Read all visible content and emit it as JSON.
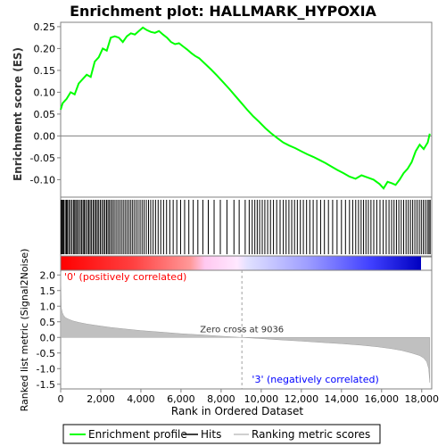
{
  "chart_data": [
    {
      "type": "line",
      "title": "Enrichment plot: HALLMARK_HYPOXIA",
      "ylabel": "Enrichment score (ES)",
      "xlim": [
        0,
        18500
      ],
      "ylim": [
        -0.14,
        0.26
      ],
      "y_ticks": [
        "0.25",
        "0.20",
        "0.15",
        "0.10",
        "0.05",
        "0.00",
        "-0.05",
        "-0.10"
      ],
      "y_tick_values": [
        0.25,
        0.2,
        0.15,
        0.1,
        0.05,
        0.0,
        -0.05,
        -0.1
      ],
      "grid": false,
      "series": [
        {
          "name": "Enrichment profile",
          "color": "#00ff00",
          "x": [
            0,
            100,
            300,
            500,
            700,
            900,
            1100,
            1300,
            1500,
            1700,
            1900,
            2100,
            2300,
            2500,
            2700,
            2900,
            3100,
            3300,
            3500,
            3700,
            3900,
            4100,
            4300,
            4500,
            4700,
            4900,
            5100,
            5300,
            5500,
            5700,
            5900,
            6100,
            6300,
            6500,
            6700,
            6900,
            7200,
            7500,
            7800,
            8100,
            8400,
            8700,
            9000,
            9300,
            9600,
            9900,
            10200,
            10500,
            10800,
            11100,
            11400,
            11700,
            12000,
            12300,
            12600,
            12900,
            13200,
            13500,
            13800,
            14100,
            14400,
            14700,
            15000,
            15300,
            15600,
            15900,
            16100,
            16300,
            16500,
            16700,
            16900,
            17100,
            17300,
            17500,
            17700,
            17900,
            18100,
            18300,
            18400
          ],
          "y": [
            0.06,
            0.075,
            0.085,
            0.1,
            0.095,
            0.12,
            0.13,
            0.14,
            0.135,
            0.17,
            0.18,
            0.2,
            0.195,
            0.225,
            0.228,
            0.225,
            0.215,
            0.228,
            0.235,
            0.232,
            0.24,
            0.248,
            0.242,
            0.238,
            0.236,
            0.24,
            0.232,
            0.225,
            0.215,
            0.21,
            0.212,
            0.205,
            0.198,
            0.19,
            0.183,
            0.178,
            0.165,
            0.152,
            0.138,
            0.123,
            0.108,
            0.092,
            0.076,
            0.06,
            0.045,
            0.032,
            0.018,
            0.006,
            -0.005,
            -0.015,
            -0.022,
            -0.028,
            -0.035,
            -0.042,
            -0.048,
            -0.055,
            -0.062,
            -0.07,
            -0.078,
            -0.085,
            -0.093,
            -0.098,
            -0.09,
            -0.095,
            -0.1,
            -0.11,
            -0.12,
            -0.105,
            -0.108,
            -0.112,
            -0.1,
            -0.085,
            -0.075,
            -0.06,
            -0.035,
            -0.02,
            -0.03,
            -0.015,
            0.005
          ]
        }
      ]
    },
    {
      "type": "hits",
      "series_name": "Hits",
      "hit_ranks": [
        20,
        60,
        110,
        160,
        230,
        290,
        340,
        410,
        480,
        560,
        640,
        700,
        760,
        830,
        900,
        980,
        1050,
        1120,
        1180,
        1250,
        1330,
        1400,
        1470,
        1540,
        1620,
        1690,
        1760,
        1830,
        1900,
        1980,
        2060,
        2140,
        2210,
        2290,
        2360,
        2430,
        2510,
        2590,
        2670,
        2760,
        2850,
        2940,
        3030,
        3120,
        3210,
        3300,
        3390,
        3480,
        3570,
        3660,
        3760,
        3860,
        3960,
        4060,
        4160,
        4270,
        4380,
        4490,
        4610,
        4730,
        4860,
        4990,
        5130,
        5280,
        5440,
        5610,
        5790,
        5980,
        6180,
        6390,
        6610,
        6840,
        7090,
        7360,
        7650,
        7960,
        8290,
        8640,
        8900,
        9200,
        9400,
        9550,
        9680,
        9800,
        9920,
        10050,
        10180,
        10320,
        10460,
        10610,
        10770,
        10940,
        11100,
        11240,
        11380,
        11520,
        11660,
        11800,
        11950,
        12100,
        12260,
        12420,
        12590,
        12770,
        12960,
        13150,
        13350,
        13560,
        13780,
        14000,
        14200,
        14400,
        14560,
        14710,
        14850,
        14980,
        15100,
        15220,
        15340,
        15470,
        15610,
        15760,
        15920,
        16080,
        16230,
        16370,
        16500,
        16620,
        16740,
        16860,
        16980,
        17100,
        17220,
        17330,
        17440,
        17550,
        17660,
        17770,
        17880,
        17980,
        18080,
        18180,
        18280,
        18360,
        18420
      ]
    },
    {
      "type": "area",
      "ylabel": "Ranked list metric (Signal2Noise)",
      "xlabel": "Rank in Ordered Dataset",
      "xlim": [
        0,
        18500
      ],
      "ylim": [
        -1.65,
        2.15
      ],
      "x_ticks": [
        "0",
        "2,000",
        "4,000",
        "6,000",
        "8,000",
        "10,000",
        "12,000",
        "14,000",
        "16,000",
        "18,000"
      ],
      "x_tick_values": [
        0,
        2000,
        4000,
        6000,
        8000,
        10000,
        12000,
        14000,
        16000,
        18000
      ],
      "y_ticks": [
        "2.0",
        "1.5",
        "1.0",
        "0.5",
        "0.0",
        "-0.5",
        "-1.0",
        "-1.5"
      ],
      "y_tick_values": [
        2.0,
        1.5,
        1.0,
        0.5,
        0.0,
        -0.5,
        -1.0,
        -1.5
      ],
      "x": [
        0,
        30,
        80,
        150,
        250,
        400,
        600,
        900,
        1300,
        1800,
        2500,
        3200,
        4000,
        5000,
        6000,
        7000,
        8000,
        9036,
        10000,
        11000,
        12000,
        13000,
        14000,
        15000,
        15800,
        16500,
        17000,
        17500,
        17900,
        18100,
        18250,
        18350,
        18400
      ],
      "values": [
        2.1,
        0.95,
        0.8,
        0.7,
        0.63,
        0.58,
        0.53,
        0.48,
        0.43,
        0.38,
        0.32,
        0.27,
        0.22,
        0.17,
        0.12,
        0.08,
        0.04,
        0.0,
        -0.04,
        -0.08,
        -0.12,
        -0.16,
        -0.2,
        -0.25,
        -0.3,
        -0.36,
        -0.42,
        -0.5,
        -0.58,
        -0.66,
        -0.78,
        -1.0,
        -1.45
      ],
      "zero_cross": 9036,
      "annotations": {
        "zero_cross_label": "Zero cross at 9036",
        "positive_label": "'0' (positively correlated)",
        "negative_label": "'3' (negatively correlated)"
      },
      "colors": {
        "fill": "#c0c0c0",
        "positive_label": "#ff0000",
        "negative_label": "#0000ff"
      }
    }
  ],
  "legend": {
    "items": [
      {
        "label": "Enrichment profile",
        "color": "#00ff00"
      },
      {
        "label": "Hits",
        "color": "#000000"
      },
      {
        "label": "Ranking metric scores",
        "color": "#c0c0c0"
      }
    ]
  }
}
